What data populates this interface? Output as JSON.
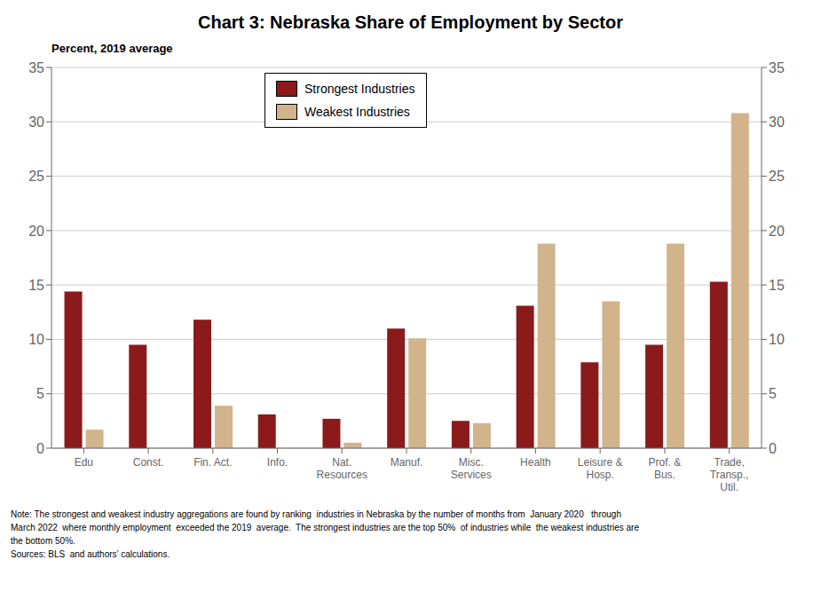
{
  "chart_data": {
    "type": "bar",
    "title": "Chart 3: Nebraska Share of Employment by Sector",
    "y_label": "Percent, 2019 average",
    "categories": [
      "Edu",
      "Const.",
      "Fin. Act.",
      "Info.",
      "Nat.\nResources",
      "Manuf.",
      "Misc.\nServices",
      "Health",
      "Leisure &\nHosp.",
      "Prof. &\nBus.",
      "Trade,\nTransp.,\nUtil."
    ],
    "series": [
      {
        "name": "Strongest Industries",
        "color": "#8B1A1A",
        "values": [
          14.4,
          9.5,
          11.8,
          3.1,
          2.7,
          11.0,
          2.5,
          13.1,
          7.9,
          9.5,
          15.3
        ]
      },
      {
        "name": "Weakest Industries",
        "color": "#D2B48C",
        "values": [
          1.7,
          0.0,
          3.9,
          0.0,
          0.5,
          10.1,
          2.3,
          18.8,
          13.5,
          18.8,
          30.8
        ]
      }
    ],
    "ylim": [
      0,
      35
    ],
    "yticks": [
      0,
      5,
      10,
      15,
      20,
      25,
      30,
      35
    ],
    "y2lim": [
      0,
      35
    ],
    "y2ticks": [
      0,
      5,
      10,
      15,
      20,
      25,
      30,
      35
    ],
    "grid": true,
    "legend": "top",
    "annotations": [
      "Note: The strongest and weakest industry aggregations are found by ranking  industries in Nebraska by the number of months from  January 2020   through",
      "March 2022  where monthly employment  exceeded the 2019  average.  The strongest industries are the top 50%  of industries while  the weakest industries are",
      "the bottom 50%.",
      "Sources: BLS  and authors’ calculations."
    ]
  }
}
